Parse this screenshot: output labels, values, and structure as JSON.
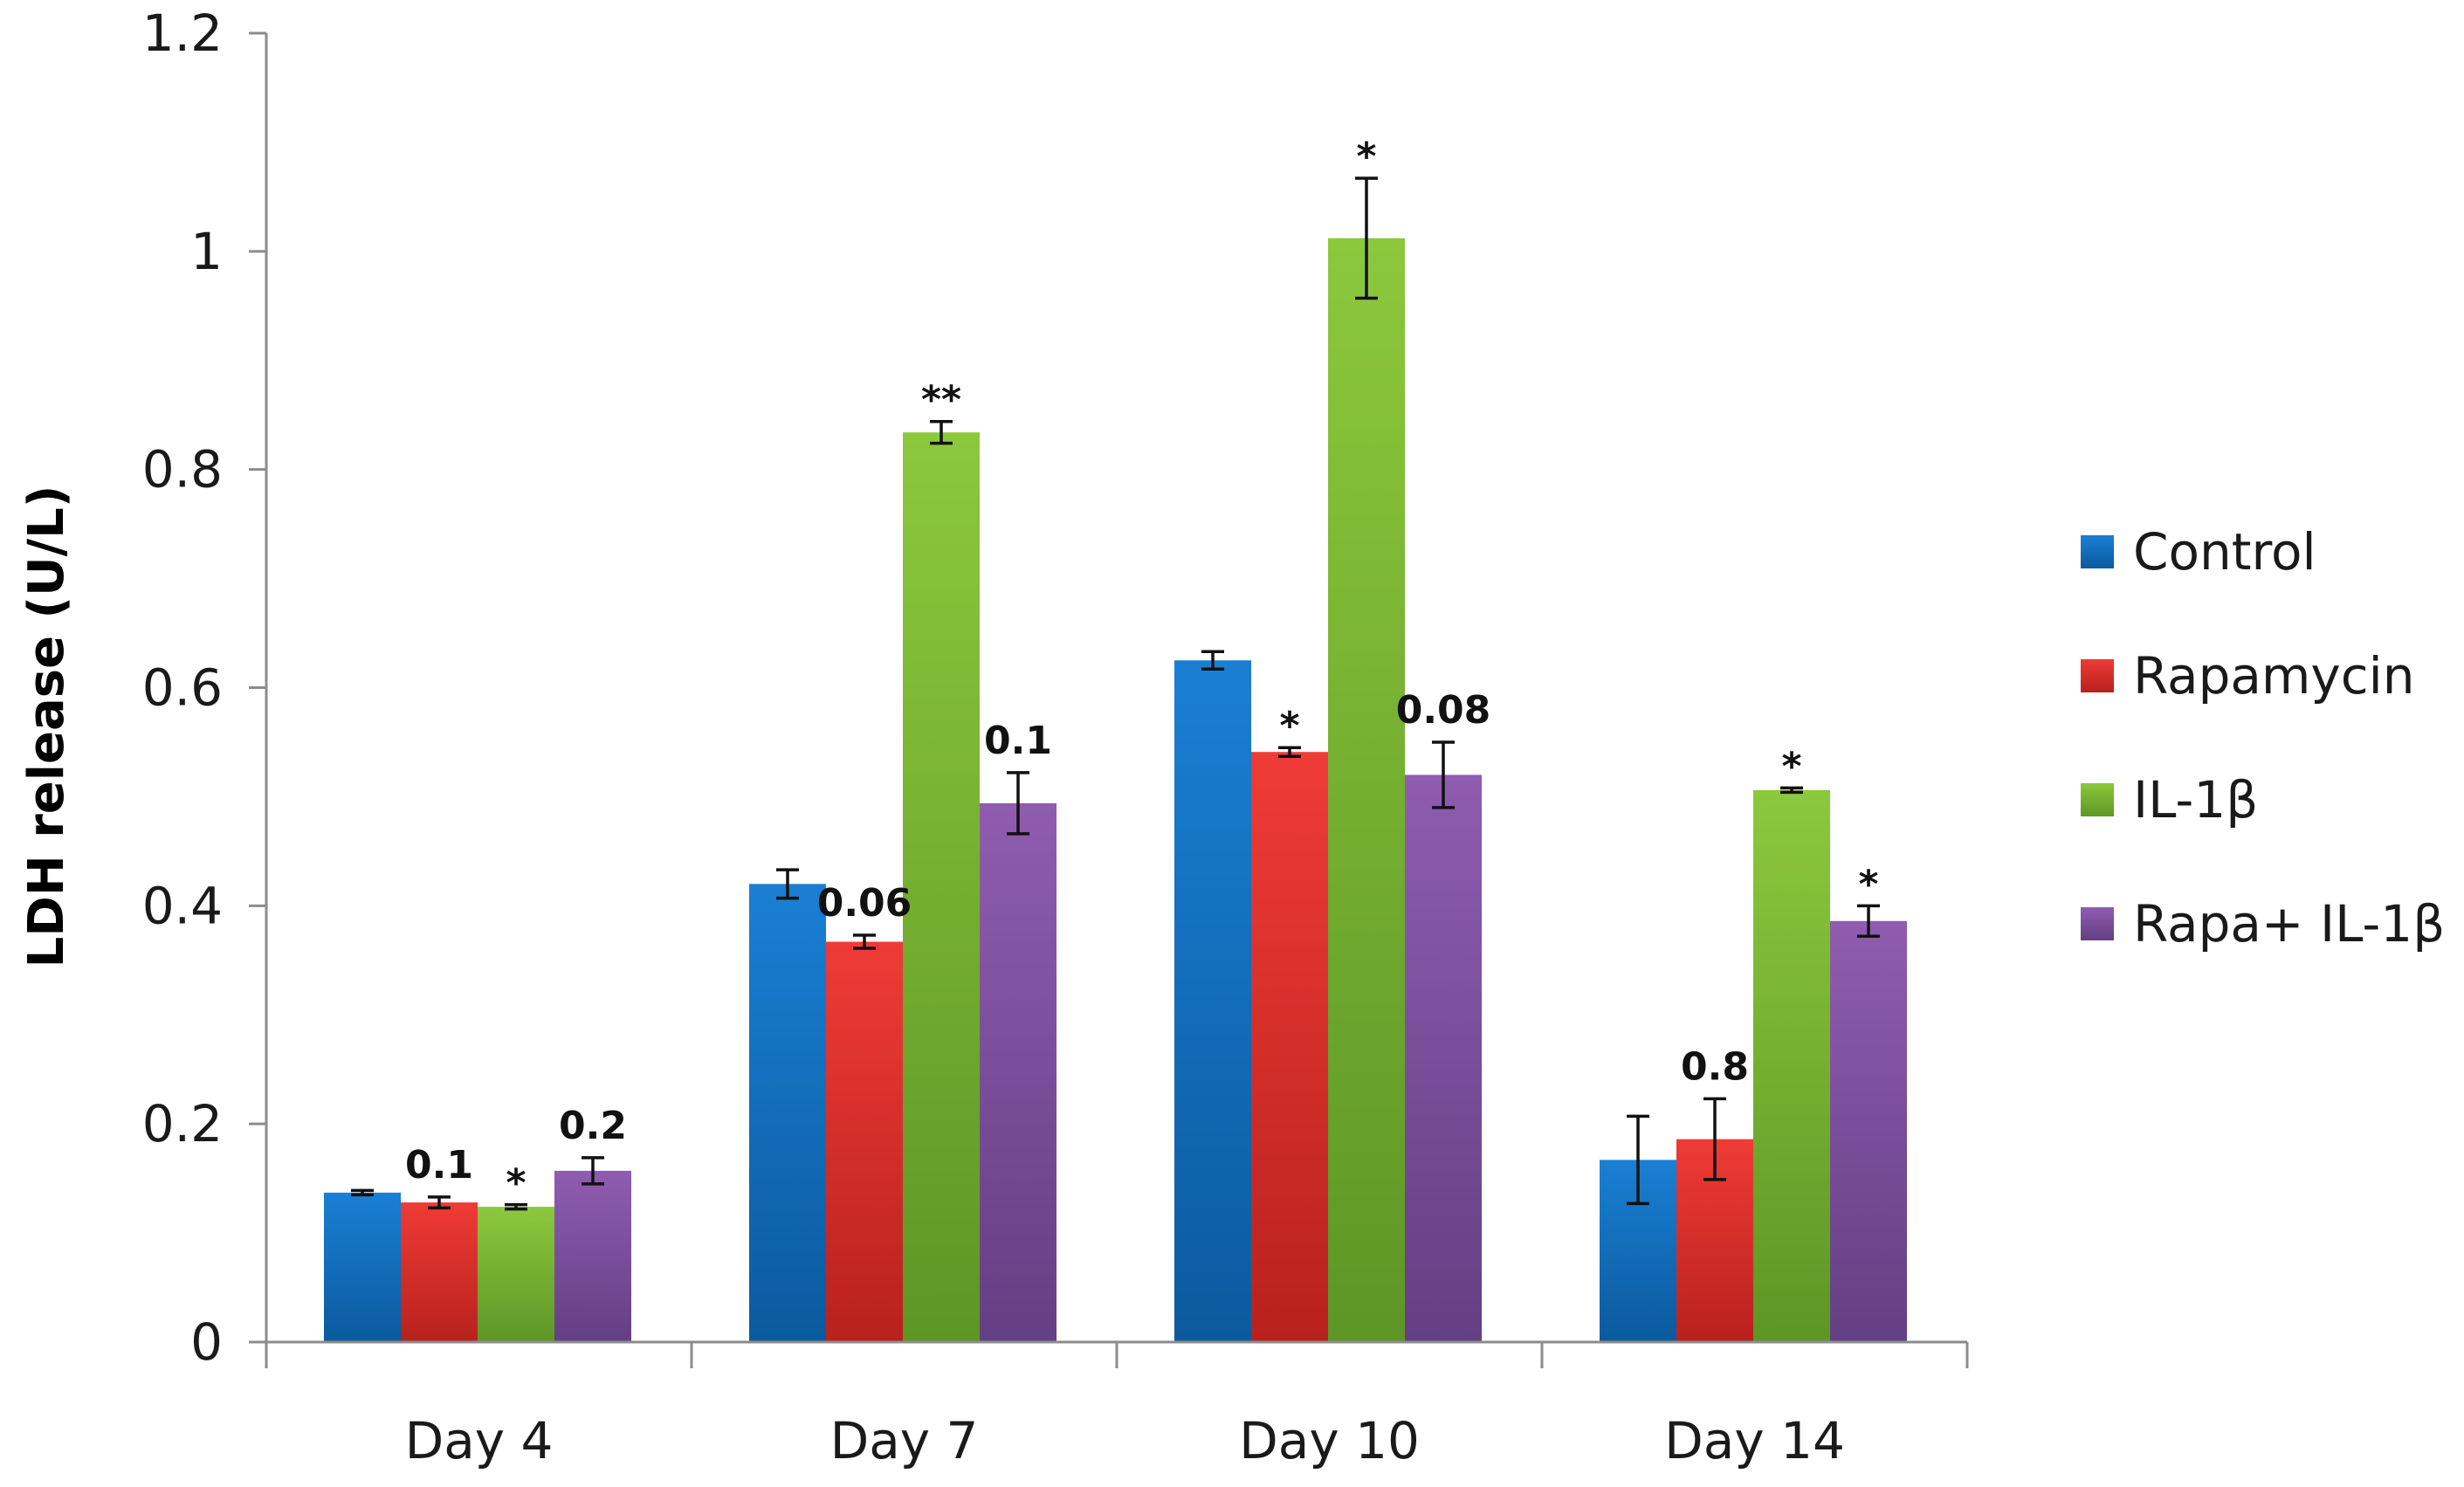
{
  "chart_data": {
    "type": "bar",
    "title": "",
    "xlabel": "",
    "ylabel": "LDH release (U/L)",
    "ylim": [
      0,
      1.2
    ],
    "yticks": [
      0,
      0.2,
      0.4,
      0.6,
      0.8,
      1,
      1.2
    ],
    "ytick_labels": [
      "0",
      "0.2",
      "0.4",
      "0.6",
      "0.8",
      "1",
      "1.2"
    ],
    "grid": false,
    "legend_position": "right",
    "categories": [
      "Day 4",
      "Day 7",
      "Day 10",
      "Day 14"
    ],
    "series": [
      {
        "name": "Control",
        "color": "#1a7fd4",
        "color_dark": "#0b5a9e",
        "values": [
          0.137,
          0.42,
          0.625,
          0.167
        ],
        "errors": [
          0.002,
          0.013,
          0.008,
          0.04
        ],
        "annotations": [
          "",
          "",
          "",
          ""
        ]
      },
      {
        "name": "Rapamycin",
        "color": "#ef3b36",
        "color_dark": "#b8211d",
        "values": [
          0.128,
          0.367,
          0.541,
          0.186
        ],
        "errors": [
          0.005,
          0.006,
          0.004,
          0.037
        ],
        "annotations": [
          "0.1",
          "0.06",
          "*",
          "0.8"
        ]
      },
      {
        "name": "IL-1β",
        "color": "#8cc83c",
        "color_dark": "#5e9626",
        "values": [
          0.124,
          0.834,
          1.012,
          0.506
        ],
        "errors": [
          0.002,
          0.01,
          0.055,
          0.002
        ],
        "annotations": [
          "*",
          "**",
          "*",
          "*"
        ]
      },
      {
        "name": "Rapa+ IL-1β",
        "color": "#8f5cb0",
        "color_dark": "#643f83",
        "values": [
          0.157,
          0.494,
          0.52,
          0.386
        ],
        "errors": [
          0.012,
          0.028,
          0.03,
          0.014
        ],
        "annotations": [
          "0.2",
          "0.1",
          "0.08",
          "*"
        ]
      }
    ]
  }
}
